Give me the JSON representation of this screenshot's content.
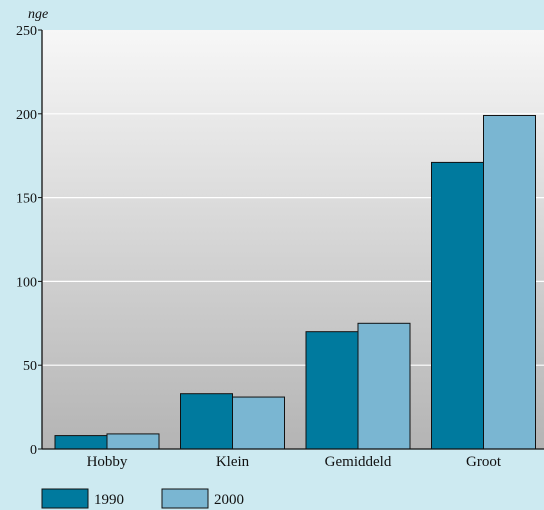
{
  "chart_data": {
    "type": "bar",
    "title": "",
    "ylabel": "nge",
    "xlabel": "",
    "categories": [
      "Hobby",
      "Klein",
      "Gemiddeld",
      "Groot"
    ],
    "series": [
      {
        "name": "1990",
        "values": [
          8,
          33,
          70,
          171
        ],
        "color": "#007a9e"
      },
      {
        "name": "2000",
        "values": [
          9,
          31,
          75,
          199
        ],
        "color": "#7ab6d2"
      }
    ],
    "ylim": [
      0,
      250
    ],
    "yticks": [
      0,
      50,
      100,
      150,
      200,
      250
    ],
    "grid": true,
    "legend": "bottom-left",
    "colors": {
      "page_background": "#cdeaf1",
      "plot_gradient_top": "#f7f7f7",
      "plot_gradient_bottom": "#b4b4b4",
      "gridline": "#ffffff",
      "bar_stroke": "#111111"
    }
  }
}
